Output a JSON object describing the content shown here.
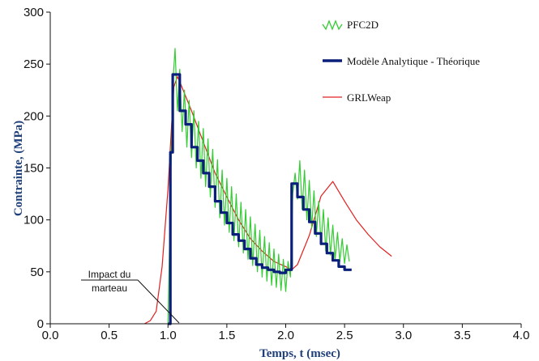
{
  "chart_data": {
    "type": "line",
    "xlabel": "Temps, t (msec)",
    "ylabel": "Contrainte, (MPa)",
    "xlim": [
      0,
      4
    ],
    "ylim": [
      0,
      300
    ],
    "x_ticks": [
      0.0,
      0.5,
      1.0,
      1.5,
      2.0,
      2.5,
      3.0,
      3.5,
      4.0
    ],
    "x_tick_labels": [
      "0.0",
      "0.5",
      "1.0",
      "1.5",
      "2.0",
      "2.5",
      "3.0",
      "3.5",
      "4.0"
    ],
    "y_ticks": [
      0,
      50,
      100,
      150,
      200,
      250,
      300
    ],
    "y_tick_labels": [
      "0",
      "50",
      "100",
      "150",
      "200",
      "250",
      "300"
    ],
    "grid": false,
    "legend_position": "top-right",
    "annotation": {
      "lines": [
        "Impact du",
        "marteau"
      ],
      "points_to": [
        1.0,
        0
      ]
    },
    "series": [
      {
        "name": "PFC2D",
        "color": "#33cc33",
        "style": "thin",
        "points": [
          [
            1.0,
            0
          ],
          [
            1.02,
            120
          ],
          [
            1.04,
            230
          ],
          [
            1.06,
            265
          ],
          [
            1.08,
            205
          ],
          [
            1.1,
            245
          ],
          [
            1.12,
            185
          ],
          [
            1.14,
            225
          ],
          [
            1.16,
            170
          ],
          [
            1.18,
            215
          ],
          [
            1.2,
            160
          ],
          [
            1.22,
            205
          ],
          [
            1.24,
            150
          ],
          [
            1.26,
            195
          ],
          [
            1.28,
            140
          ],
          [
            1.3,
            188
          ],
          [
            1.32,
            132
          ],
          [
            1.34,
            178
          ],
          [
            1.36,
            122
          ],
          [
            1.38,
            168
          ],
          [
            1.4,
            112
          ],
          [
            1.42,
            158
          ],
          [
            1.44,
            102
          ],
          [
            1.46,
            148
          ],
          [
            1.48,
            95
          ],
          [
            1.5,
            140
          ],
          [
            1.52,
            88
          ],
          [
            1.54,
            132
          ],
          [
            1.56,
            80
          ],
          [
            1.58,
            125
          ],
          [
            1.6,
            74
          ],
          [
            1.62,
            117
          ],
          [
            1.64,
            68
          ],
          [
            1.66,
            110
          ],
          [
            1.68,
            62
          ],
          [
            1.7,
            103
          ],
          [
            1.72,
            56
          ],
          [
            1.74,
            96
          ],
          [
            1.76,
            50
          ],
          [
            1.78,
            90
          ],
          [
            1.8,
            45
          ],
          [
            1.82,
            84
          ],
          [
            1.84,
            41
          ],
          [
            1.86,
            78
          ],
          [
            1.88,
            37
          ],
          [
            1.9,
            72
          ],
          [
            1.92,
            35
          ],
          [
            1.94,
            67
          ],
          [
            1.96,
            32
          ],
          [
            1.98,
            62
          ],
          [
            2.0,
            31
          ],
          [
            2.02,
            60
          ],
          [
            2.04,
            45
          ],
          [
            2.06,
            125
          ],
          [
            2.08,
            145
          ],
          [
            2.1,
            120
          ],
          [
            2.12,
            157
          ],
          [
            2.14,
            110
          ],
          [
            2.16,
            148
          ],
          [
            2.18,
            100
          ],
          [
            2.2,
            138
          ],
          [
            2.22,
            92
          ],
          [
            2.24,
            128
          ],
          [
            2.26,
            84
          ],
          [
            2.28,
            118
          ],
          [
            2.3,
            76
          ],
          [
            2.32,
            110
          ],
          [
            2.34,
            70
          ],
          [
            2.36,
            102
          ],
          [
            2.38,
            66
          ],
          [
            2.4,
            95
          ],
          [
            2.42,
            62
          ],
          [
            2.44,
            88
          ],
          [
            2.46,
            60
          ],
          [
            2.48,
            82
          ],
          [
            2.5,
            58
          ],
          [
            2.52,
            76
          ],
          [
            2.54,
            60
          ]
        ]
      },
      {
        "name": "Modèle Analytique - Théorique",
        "color": "#0a1f7a",
        "style": "thick",
        "points": [
          [
            1.0,
            0
          ],
          [
            1.02,
            0
          ],
          [
            1.02,
            165
          ],
          [
            1.04,
            165
          ],
          [
            1.04,
            240
          ],
          [
            1.1,
            240
          ],
          [
            1.1,
            205
          ],
          [
            1.15,
            205
          ],
          [
            1.15,
            192
          ],
          [
            1.2,
            192
          ],
          [
            1.2,
            170
          ],
          [
            1.25,
            170
          ],
          [
            1.25,
            157
          ],
          [
            1.3,
            157
          ],
          [
            1.3,
            145
          ],
          [
            1.35,
            145
          ],
          [
            1.35,
            132
          ],
          [
            1.4,
            132
          ],
          [
            1.4,
            118
          ],
          [
            1.45,
            118
          ],
          [
            1.45,
            107
          ],
          [
            1.5,
            107
          ],
          [
            1.5,
            97
          ],
          [
            1.55,
            97
          ],
          [
            1.55,
            86
          ],
          [
            1.6,
            86
          ],
          [
            1.6,
            80
          ],
          [
            1.65,
            80
          ],
          [
            1.65,
            72
          ],
          [
            1.7,
            72
          ],
          [
            1.7,
            63
          ],
          [
            1.75,
            63
          ],
          [
            1.75,
            57
          ],
          [
            1.8,
            57
          ],
          [
            1.8,
            54
          ],
          [
            1.85,
            54
          ],
          [
            1.85,
            52
          ],
          [
            1.9,
            52
          ],
          [
            1.9,
            50
          ],
          [
            1.95,
            50
          ],
          [
            1.95,
            49
          ],
          [
            2.0,
            49
          ],
          [
            2.0,
            52
          ],
          [
            2.05,
            52
          ],
          [
            2.05,
            135
          ],
          [
            2.1,
            135
          ],
          [
            2.1,
            122
          ],
          [
            2.15,
            122
          ],
          [
            2.15,
            110
          ],
          [
            2.2,
            110
          ],
          [
            2.2,
            98
          ],
          [
            2.25,
            98
          ],
          [
            2.25,
            87
          ],
          [
            2.3,
            87
          ],
          [
            2.3,
            77
          ],
          [
            2.35,
            77
          ],
          [
            2.35,
            68
          ],
          [
            2.4,
            68
          ],
          [
            2.4,
            61
          ],
          [
            2.45,
            61
          ],
          [
            2.45,
            55
          ],
          [
            2.5,
            55
          ],
          [
            2.5,
            52
          ],
          [
            2.56,
            52
          ]
        ]
      },
      {
        "name": "GRLWeap",
        "color": "#e02020",
        "style": "thin",
        "points": [
          [
            0.8,
            0
          ],
          [
            0.85,
            3
          ],
          [
            0.9,
            12
          ],
          [
            0.95,
            55
          ],
          [
            1.0,
            130
          ],
          [
            1.03,
            190
          ],
          [
            1.05,
            228
          ],
          [
            1.08,
            238
          ],
          [
            1.1,
            233
          ],
          [
            1.2,
            205
          ],
          [
            1.3,
            175
          ],
          [
            1.4,
            145
          ],
          [
            1.5,
            122
          ],
          [
            1.6,
            100
          ],
          [
            1.7,
            82
          ],
          [
            1.8,
            70
          ],
          [
            1.9,
            60
          ],
          [
            2.0,
            55
          ],
          [
            2.05,
            52
          ],
          [
            2.1,
            57
          ],
          [
            2.2,
            85
          ],
          [
            2.3,
            123
          ],
          [
            2.4,
            137
          ],
          [
            2.5,
            118
          ],
          [
            2.6,
            100
          ],
          [
            2.7,
            86
          ],
          [
            2.8,
            74
          ],
          [
            2.9,
            65
          ]
        ]
      }
    ]
  }
}
